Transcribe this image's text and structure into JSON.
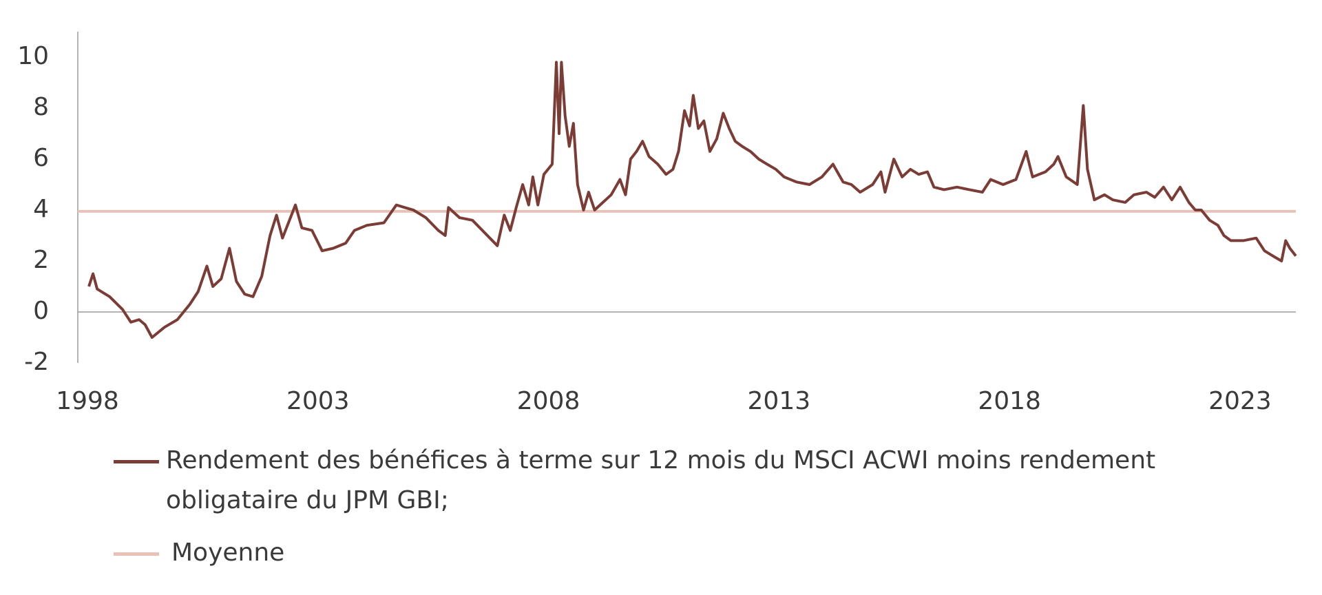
{
  "chart_data": {
    "type": "line",
    "xlim": [
      1998,
      2024.42
    ],
    "ylim": [
      -2,
      11
    ],
    "xticks": [
      1998,
      2003,
      2008,
      2013,
      2018,
      2023
    ],
    "yticks": [
      -2,
      0,
      2,
      4,
      6,
      8,
      10
    ],
    "series": [
      {
        "name": "Rendement des bénéfices à terme sur 12 mois du MSCI ACWI moins rendement obligataire du JPM GBI;",
        "color": "#7b3c36",
        "x": [
          1998.24,
          1998.33,
          1998.42,
          1998.69,
          1998.97,
          1999.15,
          1999.33,
          1999.46,
          1999.61,
          1999.88,
          2000.16,
          2000.43,
          2000.61,
          2000.8,
          2000.93,
          2001.11,
          2001.29,
          2001.44,
          2001.62,
          2001.8,
          2001.99,
          2002.17,
          2002.31,
          2002.44,
          2002.72,
          2002.86,
          2003.08,
          2003.3,
          2003.54,
          2003.81,
          2004.0,
          2004.27,
          2004.64,
          2004.91,
          2005.09,
          2005.28,
          2005.55,
          2005.82,
          2005.97,
          2006.04,
          2006.28,
          2006.56,
          2006.83,
          2007.1,
          2007.25,
          2007.38,
          2007.51,
          2007.65,
          2007.78,
          2007.87,
          2007.98,
          2008.11,
          2008.29,
          2008.38,
          2008.44,
          2008.49,
          2008.57,
          2008.66,
          2008.75,
          2008.84,
          2008.97,
          2009.08,
          2009.21,
          2009.39,
          2009.57,
          2009.76,
          2009.88,
          2009.99,
          2010.12,
          2010.25,
          2010.39,
          2010.58,
          2010.76,
          2010.91,
          2011.03,
          2011.16,
          2011.27,
          2011.35,
          2011.46,
          2011.58,
          2011.71,
          2011.86,
          2012.0,
          2012.13,
          2012.26,
          2012.41,
          2012.59,
          2012.77,
          2012.95,
          2013.14,
          2013.32,
          2013.59,
          2013.87,
          2014.14,
          2014.38,
          2014.6,
          2014.78,
          2014.97,
          2015.24,
          2015.42,
          2015.51,
          2015.7,
          2015.88,
          2016.06,
          2016.24,
          2016.43,
          2016.57,
          2016.79,
          2017.07,
          2017.34,
          2017.62,
          2017.8,
          2018.07,
          2018.35,
          2018.57,
          2018.71,
          2018.99,
          2019.17,
          2019.26,
          2019.44,
          2019.68,
          2019.81,
          2019.9,
          2020.05,
          2020.27,
          2020.45,
          2020.72,
          2020.91,
          2021.18,
          2021.36,
          2021.55,
          2021.73,
          2021.91,
          2022.1,
          2022.24,
          2022.37,
          2022.55,
          2022.73,
          2022.86,
          2023.01,
          2023.28,
          2023.56,
          2023.74,
          2023.92,
          2024.11,
          2024.2,
          2024.29,
          2024.42
        ],
        "values": [
          1.0,
          1.5,
          0.9,
          0.6,
          0.1,
          -0.4,
          -0.3,
          -0.5,
          -1.0,
          -0.6,
          -0.3,
          0.3,
          0.8,
          1.8,
          1.0,
          1.3,
          2.5,
          1.2,
          0.7,
          0.6,
          1.4,
          3.0,
          3.8,
          2.9,
          4.2,
          3.3,
          3.2,
          2.4,
          2.5,
          2.7,
          3.2,
          3.4,
          3.5,
          4.2,
          4.1,
          4.0,
          3.7,
          3.2,
          3.0,
          4.1,
          3.7,
          3.6,
          3.1,
          2.6,
          3.8,
          3.2,
          4.1,
          5.0,
          4.2,
          5.3,
          4.2,
          5.4,
          5.8,
          9.8,
          7.0,
          9.8,
          7.7,
          6.5,
          7.4,
          5.0,
          4.0,
          4.7,
          4.0,
          4.3,
          4.6,
          5.2,
          4.6,
          6.0,
          6.3,
          6.7,
          6.1,
          5.8,
          5.4,
          5.6,
          6.3,
          7.9,
          7.3,
          8.5,
          7.2,
          7.5,
          6.3,
          6.8,
          7.8,
          7.2,
          6.7,
          6.5,
          6.3,
          6.0,
          5.8,
          5.6,
          5.3,
          5.1,
          5.0,
          5.3,
          5.8,
          5.1,
          5.0,
          4.7,
          5.0,
          5.5,
          4.7,
          6.0,
          5.3,
          5.6,
          5.4,
          5.5,
          4.9,
          4.8,
          4.9,
          4.8,
          4.7,
          5.2,
          5.0,
          5.2,
          6.3,
          5.3,
          5.5,
          5.8,
          6.1,
          5.3,
          5.0,
          8.1,
          5.6,
          4.4,
          4.6,
          4.4,
          4.3,
          4.6,
          4.7,
          4.5,
          4.9,
          4.4,
          4.9,
          4.3,
          4.0,
          4.0,
          3.6,
          3.4,
          3.0,
          2.8,
          2.8,
          2.9,
          2.4,
          2.2,
          2.0,
          2.8,
          2.5,
          2.2
        ]
      },
      {
        "name": "Moyenne",
        "color": "#e8c2b7",
        "x": [
          1998,
          2024.42
        ],
        "values": [
          3.95,
          3.95
        ]
      }
    ]
  }
}
